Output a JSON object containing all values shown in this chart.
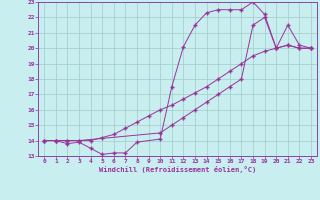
{
  "xlabel": "Windchill (Refroidissement éolien,°C)",
  "bg_color": "#c8eef0",
  "grid_color": "#a0ccc8",
  "line_color": "#993399",
  "spine_color": "#8844aa",
  "xlim": [
    -0.5,
    23.5
  ],
  "ylim": [
    13,
    23
  ],
  "xticks": [
    0,
    1,
    2,
    3,
    4,
    5,
    6,
    7,
    8,
    9,
    10,
    11,
    12,
    13,
    14,
    15,
    16,
    17,
    18,
    19,
    20,
    21,
    22,
    23
  ],
  "yticks": [
    13,
    14,
    15,
    16,
    17,
    18,
    19,
    20,
    21,
    22,
    23
  ],
  "series1_x": [
    0,
    1,
    2,
    3,
    4,
    5,
    6,
    7,
    8,
    10,
    11,
    12,
    13,
    14,
    15,
    16,
    17,
    18,
    19,
    20,
    21,
    22,
    23
  ],
  "series1_y": [
    14.0,
    14.0,
    13.8,
    13.9,
    13.5,
    13.1,
    13.2,
    13.2,
    13.9,
    14.1,
    17.5,
    20.1,
    21.5,
    22.3,
    22.5,
    22.5,
    22.5,
    23.0,
    22.2,
    20.0,
    20.2,
    20.0,
    20.0
  ],
  "series2_x": [
    0,
    1,
    2,
    3,
    10,
    11,
    12,
    13,
    14,
    15,
    16,
    17,
    18,
    19,
    20,
    21,
    22,
    23
  ],
  "series2_y": [
    14.0,
    14.0,
    14.0,
    14.0,
    14.5,
    15.0,
    15.5,
    16.0,
    16.5,
    17.0,
    17.5,
    18.0,
    21.5,
    22.0,
    20.0,
    21.5,
    20.2,
    20.0
  ],
  "series3_x": [
    0,
    1,
    2,
    3,
    4,
    5,
    6,
    7,
    8,
    9,
    10,
    11,
    12,
    13,
    14,
    15,
    16,
    17,
    18,
    19,
    20,
    21,
    22,
    23
  ],
  "series3_y": [
    14.0,
    14.0,
    14.0,
    14.0,
    14.0,
    14.2,
    14.4,
    14.8,
    15.2,
    15.6,
    16.0,
    16.3,
    16.7,
    17.1,
    17.5,
    18.0,
    18.5,
    19.0,
    19.5,
    19.8,
    20.0,
    20.2,
    20.0,
    20.0
  ]
}
